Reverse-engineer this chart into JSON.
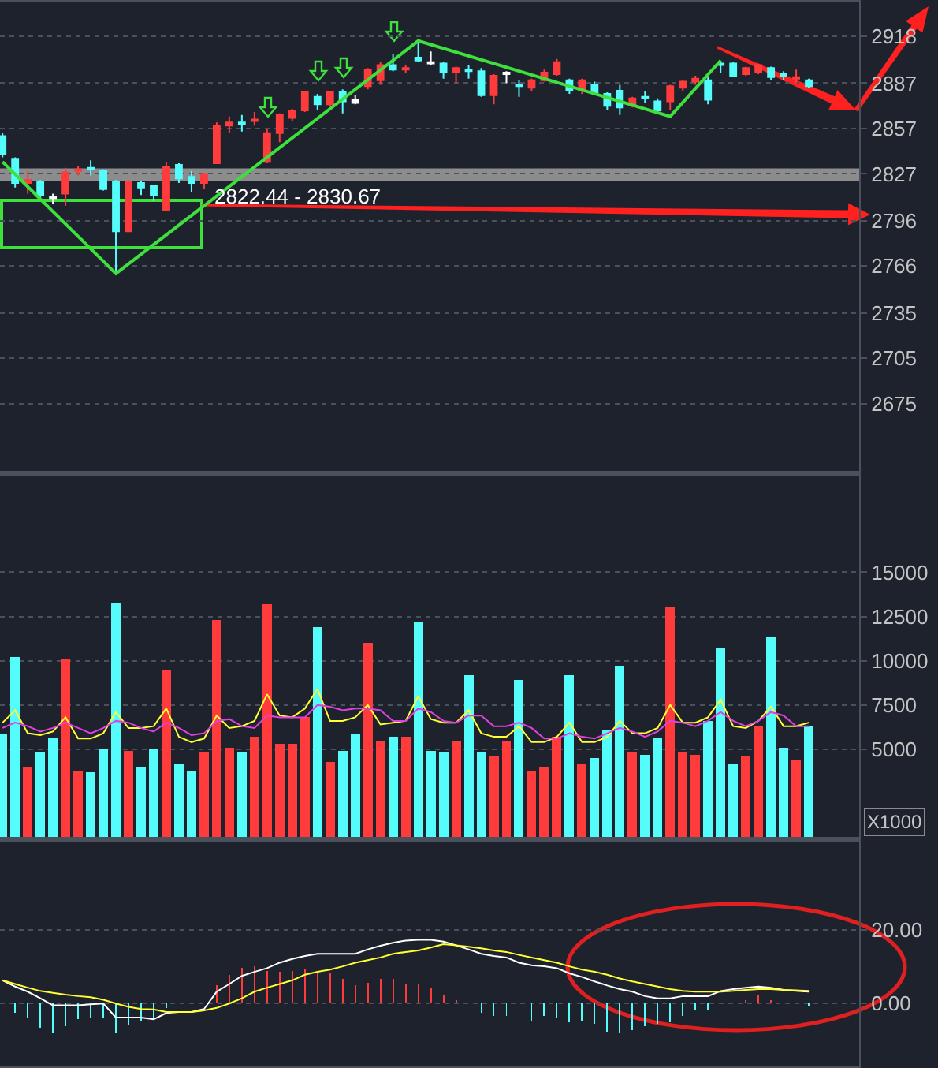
{
  "chart_data": [
    {
      "type": "candlestick",
      "categories": [
        null,
        null,
        null,
        null,
        null,
        null,
        null,
        null,
        null,
        null,
        null,
        null,
        null,
        null,
        null,
        null,
        null,
        null,
        null,
        null,
        null,
        null,
        null,
        null,
        null,
        null,
        null,
        null,
        null,
        null,
        null,
        null,
        null,
        null,
        null,
        null,
        null,
        null,
        null,
        null,
        null,
        null,
        null,
        null,
        null,
        null,
        null,
        null,
        null,
        null,
        null,
        null,
        null,
        null,
        null,
        null,
        null,
        null,
        null,
        null,
        null,
        null,
        null,
        null,
        null
      ],
      "ohlc": [
        [
          2852,
          2854,
          2838,
          2840
        ],
        [
          2837,
          2838,
          2818,
          2821
        ],
        [
          2821,
          2829,
          2814,
          2823
        ],
        [
          2822,
          2823,
          2811,
          2813
        ],
        [
          2812,
          2814,
          2807,
          2811
        ],
        [
          2814,
          2831,
          2806,
          2828
        ],
        [
          2829,
          2832,
          2826,
          2830
        ],
        [
          2831,
          2836,
          2826,
          2830
        ],
        [
          2829,
          2830,
          2816,
          2817
        ],
        [
          2822,
          2823,
          2760,
          2789
        ],
        [
          2789,
          2823,
          2789,
          2822
        ],
        [
          2821,
          2822,
          2813,
          2818
        ],
        [
          2819,
          2820,
          2809,
          2813
        ],
        [
          2803,
          2835,
          2803,
          2832
        ],
        [
          2833,
          2834,
          2821,
          2824
        ],
        [
          2825,
          2829,
          2815,
          2821
        ],
        [
          2821,
          2827,
          2817,
          2827
        ],
        [
          2834,
          2861,
          2834,
          2859
        ],
        [
          2859,
          2865,
          2854,
          2861
        ],
        [
          2861,
          2866,
          2855,
          2860
        ],
        [
          2862,
          2868,
          2859,
          2863
        ],
        [
          2835,
          2857,
          2834,
          2854
        ],
        [
          2854,
          2867,
          2848,
          2866
        ],
        [
          2864,
          2870,
          2862,
          2869
        ],
        [
          2869,
          2882,
          2868,
          2881
        ],
        [
          2878,
          2880,
          2869,
          2873
        ],
        [
          2873,
          2882,
          2872,
          2881
        ],
        [
          2881,
          2883,
          2867,
          2875
        ],
        [
          2876,
          2879,
          2873,
          2874
        ],
        [
          2885,
          2897,
          2883,
          2896
        ],
        [
          2889,
          2901,
          2886,
          2899
        ],
        [
          2899,
          2906,
          2895,
          2896
        ],
        [
          2896,
          2899,
          2894,
          2897
        ],
        [
          2904,
          2915,
          2901,
          2902
        ],
        [
          2901,
          2908,
          2899,
          2900
        ],
        [
          2900,
          2901,
          2890,
          2894
        ],
        [
          2894,
          2898,
          2887,
          2897
        ],
        [
          2896,
          2899,
          2890,
          2895
        ],
        [
          2895,
          2897,
          2878,
          2879
        ],
        [
          2879,
          2893,
          2873,
          2892
        ],
        [
          2894,
          2895,
          2887,
          2893
        ],
        [
          2886,
          2889,
          2878,
          2885
        ],
        [
          2884,
          2890,
          2882,
          2889
        ],
        [
          2889,
          2896,
          2888,
          2894
        ],
        [
          2893,
          2903,
          2892,
          2901
        ],
        [
          2889,
          2890,
          2880,
          2882
        ],
        [
          2882,
          2890,
          2880,
          2889
        ],
        [
          2886,
          2888,
          2879,
          2881
        ],
        [
          2880,
          2881,
          2869,
          2872
        ],
        [
          2882,
          2886,
          2866,
          2871
        ],
        [
          2873,
          2878,
          2871,
          2877
        ],
        [
          2878,
          2882,
          2874,
          2877
        ],
        [
          2875,
          2877,
          2869,
          2869
        ],
        [
          2875,
          2886,
          2869,
          2885
        ],
        [
          2884,
          2889,
          2882,
          2888
        ],
        [
          2888,
          2892,
          2886,
          2890
        ],
        [
          2889,
          2892,
          2873,
          2876
        ],
        [
          2900,
          2902,
          2894,
          2899
        ],
        [
          2900,
          2901,
          2891,
          2892
        ],
        [
          2893,
          2898,
          2892,
          2897
        ],
        [
          2894,
          2900,
          2893,
          2899
        ],
        [
          2897,
          2898,
          2889,
          2891
        ],
        [
          2893,
          2895,
          2889,
          2892
        ],
        [
          2890,
          2896,
          2887,
          2891
        ],
        [
          2889,
          2890,
          2884,
          2885
        ]
      ],
      "colors": [
        "#54fcfc",
        "#54fcfc",
        "#ff3b3b",
        "#54fcfc",
        "#ffffff",
        "#ff3b3b",
        "#ff3b3b",
        "#54fcfc",
        "#54fcfc",
        "#54fcfc",
        "#ff3b3b",
        "#54fcfc",
        "#54fcfc",
        "#ff3b3b",
        "#54fcfc",
        "#54fcfc",
        "#ff3b3b",
        "#ff3b3b",
        "#ff3b3b",
        "#54fcfc",
        "#ff3b3b",
        "#ff3b3b",
        "#ff3b3b",
        "#ff3b3b",
        "#ff3b3b",
        "#54fcfc",
        "#ff3b3b",
        "#54fcfc",
        "#ffffff",
        "#ff3b3b",
        "#ff3b3b",
        "#54fcfc",
        "#ff3b3b",
        "#54fcfc",
        "#ffffff",
        "#54fcfc",
        "#ff3b3b",
        "#54fcfc",
        "#54fcfc",
        "#ff3b3b",
        "#ffffff",
        "#54fcfc",
        "#ff3b3b",
        "#ff3b3b",
        "#ff3b3b",
        "#54fcfc",
        "#ff3b3b",
        "#54fcfc",
        "#54fcfc",
        "#54fcfc",
        "#ff3b3b",
        "#54fcfc",
        "#54fcfc",
        "#ff3b3b",
        "#ff3b3b",
        "#ff3b3b",
        "#54fcfc",
        "#54fcfc",
        "#54fcfc",
        "#ff3b3b",
        "#ff3b3b",
        "#54fcfc",
        "#54fcfc",
        "#ff3b3b",
        "#54fcfc"
      ],
      "series": [
        {
          "type": "line",
          "color": "#3ee03e",
          "values": [
            2835,
            null,
            null,
            null,
            null,
            null,
            null,
            null,
            null,
            2761,
            null,
            null,
            null,
            null,
            null,
            null,
            null,
            null,
            null,
            null,
            null,
            null,
            null,
            null,
            null,
            null,
            null,
            null,
            null,
            null,
            null,
            null,
            null,
            2915,
            null,
            null,
            null,
            null,
            null,
            null,
            null,
            null,
            null,
            null,
            null,
            null,
            null,
            null,
            null,
            null,
            null,
            null,
            null,
            2865,
            null,
            null,
            null,
            2902,
            null,
            null,
            null,
            null,
            null,
            null,
            null
          ]
        }
      ],
      "ylim": [
        2630,
        2941
      ],
      "yticks": [
        2675,
        2705,
        2735,
        2766,
        2796,
        2827,
        2857,
        2887,
        2918
      ],
      "bands": [
        {
          "axis": "y",
          "from": 2822.44,
          "to": 2830.67,
          "label": "2822.44 - 2830.67",
          "color": "#8c8c8c"
        }
      ],
      "grid": "y",
      "tick_labels": "y"
    },
    {
      "type": "bar",
      "categories": [
        null,
        null,
        null,
        null,
        null,
        null,
        null,
        null,
        null,
        null,
        null,
        null,
        null,
        null,
        null,
        null,
        null,
        null,
        null,
        null,
        null,
        null,
        null,
        null,
        null,
        null,
        null,
        null,
        null,
        null,
        null,
        null,
        null,
        null,
        null,
        null,
        null,
        null,
        null,
        null,
        null,
        null,
        null,
        null,
        null,
        null,
        null,
        null,
        null,
        null,
        null,
        null,
        null,
        null,
        null,
        null,
        null,
        null,
        null,
        null,
        null,
        null,
        null,
        null,
        null
      ],
      "series": [
        {
          "type": "bar",
          "values": [
            5900,
            10200,
            4000,
            4800,
            5600,
            10100,
            3800,
            3700,
            5000,
            13300,
            4900,
            4000,
            5000,
            9500,
            4200,
            3800,
            4800,
            12300,
            5100,
            4800,
            5700,
            13200,
            5300,
            5300,
            6800,
            11900,
            4300,
            4900,
            5900,
            11000,
            5500,
            5700,
            5700,
            12200,
            4900,
            4800,
            5500,
            9200,
            4800,
            4600,
            5500,
            8900,
            3800,
            4000,
            5700,
            9200,
            4200,
            4500,
            6100,
            9700,
            4800,
            4700,
            5600,
            13000,
            4800,
            4700,
            6600,
            10700,
            4200,
            4600,
            6300,
            11300,
            5100,
            4400,
            6300
          ],
          "colors": [
            "#54fcfc",
            "#54fcfc",
            "#ff3b3b",
            "#54fcfc",
            "#54fcfc",
            "#ff3b3b",
            "#ff3b3b",
            "#54fcfc",
            "#54fcfc",
            "#54fcfc",
            "#ff3b3b",
            "#54fcfc",
            "#54fcfc",
            "#ff3b3b",
            "#54fcfc",
            "#54fcfc",
            "#ff3b3b",
            "#ff3b3b",
            "#ff3b3b",
            "#54fcfc",
            "#ff3b3b",
            "#ff3b3b",
            "#ff3b3b",
            "#ff3b3b",
            "#ff3b3b",
            "#54fcfc",
            "#ff3b3b",
            "#54fcfc",
            "#54fcfc",
            "#ff3b3b",
            "#ff3b3b",
            "#54fcfc",
            "#ff3b3b",
            "#54fcfc",
            "#54fcfc",
            "#54fcfc",
            "#ff3b3b",
            "#54fcfc",
            "#54fcfc",
            "#ff3b3b",
            "#ff3b3b",
            "#54fcfc",
            "#ff3b3b",
            "#ff3b3b",
            "#ff3b3b",
            "#54fcfc",
            "#ff3b3b",
            "#54fcfc",
            "#54fcfc",
            "#54fcfc",
            "#ff3b3b",
            "#54fcfc",
            "#54fcfc",
            "#ff3b3b",
            "#ff3b3b",
            "#ff3b3b",
            "#54fcfc",
            "#54fcfc",
            "#54fcfc",
            "#ff3b3b",
            "#ff3b3b",
            "#54fcfc",
            "#54fcfc",
            "#ff3b3b",
            "#54fcfc"
          ]
        },
        {
          "type": "line",
          "color": "#ffff33",
          "values": [
            6500,
            7200,
            5900,
            5800,
            6000,
            6800,
            5600,
            5600,
            5900,
            7100,
            6200,
            6200,
            6300,
            7300,
            5700,
            5400,
            5600,
            6900,
            6200,
            6300,
            6600,
            8100,
            6900,
            6800,
            7300,
            8400,
            6600,
            6600,
            6800,
            7500,
            6400,
            6500,
            6600,
            8000,
            6700,
            6500,
            6500,
            7200,
            5900,
            5700,
            5700,
            6300,
            5400,
            5400,
            5700,
            6500,
            5400,
            5400,
            5700,
            6600,
            5900,
            5900,
            6200,
            7500,
            6500,
            6500,
            6800,
            7800,
            6300,
            6200,
            6600,
            7400,
            6300,
            6300,
            6500
          ]
        },
        {
          "type": "line",
          "color": "#e040e0",
          "values": [
            6200,
            6500,
            6300,
            6000,
            6200,
            6500,
            6200,
            5900,
            6200,
            6600,
            6500,
            6200,
            6000,
            6500,
            6200,
            5800,
            5900,
            6600,
            6700,
            6300,
            6200,
            6900,
            6800,
            6800,
            6800,
            7500,
            7400,
            7200,
            7300,
            7300,
            7200,
            6600,
            6600,
            7300,
            7100,
            6600,
            6500,
            6900,
            6900,
            6300,
            6300,
            6500,
            6200,
            5600,
            5600,
            5900,
            5700,
            5600,
            5900,
            6200,
            6000,
            5700,
            6000,
            6600,
            6500,
            6300,
            6600,
            7100,
            6600,
            6300,
            6600,
            7100,
            6900,
            6300,
            6300
          ]
        }
      ],
      "ylim": [
        0,
        20500
      ],
      "yticks": [
        5000,
        7500,
        10000,
        12500,
        15000
      ],
      "annotations": [
        "X1000"
      ],
      "grid": "y",
      "tick_labels": "y"
    },
    {
      "type": "bar",
      "categories": [
        null,
        null,
        null,
        null,
        null,
        null,
        null,
        null,
        null,
        null,
        null,
        null,
        null,
        null,
        null,
        null,
        null,
        null,
        null,
        null,
        null,
        null,
        null,
        null,
        null,
        null,
        null,
        null,
        null,
        null,
        null,
        null,
        null,
        null,
        null,
        null,
        null,
        null,
        null,
        null,
        null,
        null,
        null,
        null,
        null,
        null,
        null,
        null,
        null,
        null,
        null,
        null,
        null,
        null,
        null,
        null,
        null,
        null,
        null,
        null,
        null,
        null,
        null,
        null,
        null
      ],
      "series": [
        {
          "type": "bar",
          "values": [
            null,
            -2.6,
            -3.8,
            -6.6,
            -8.1,
            -6.2,
            -4.3,
            -3.8,
            -4.0,
            -8.1,
            -5.8,
            -4.8,
            -4.3,
            -1.2,
            null,
            null,
            null,
            4.9,
            7.8,
            9.6,
            10.1,
            8.9,
            8.6,
            8.9,
            9.2,
            8.6,
            8.2,
            6.8,
            4.9,
            5.7,
            6.8,
            6.8,
            5.3,
            5.3,
            4.3,
            2.4,
            1.0,
            null,
            -2.6,
            -3.3,
            -3.3,
            -4.3,
            -4.8,
            -3.3,
            -4.0,
            -5.2,
            -4.8,
            -5.5,
            -7.7,
            -8.1,
            -7.2,
            -6.2,
            -5.5,
            -5.2,
            -3.3,
            -1.9,
            -1.9,
            null,
            null,
            1.0,
            2.4,
            1.0,
            null,
            null,
            -0.9
          ],
          "colors": [
            "#54fcfc",
            "#54fcfc",
            "#54fcfc",
            "#54fcfc",
            "#54fcfc",
            "#54fcfc",
            "#54fcfc",
            "#54fcfc",
            "#54fcfc",
            "#54fcfc",
            "#54fcfc",
            "#54fcfc",
            "#54fcfc",
            "#54fcfc",
            "#54fcfc",
            "#54fcfc",
            "#54fcfc",
            "#ff3b3b",
            "#ff3b3b",
            "#ff3b3b",
            "#ff3b3b",
            "#ff3b3b",
            "#ff3b3b",
            "#ff3b3b",
            "#ff3b3b",
            "#ff3b3b",
            "#ff3b3b",
            "#ff3b3b",
            "#ff3b3b",
            "#ff3b3b",
            "#ff3b3b",
            "#ff3b3b",
            "#ff3b3b",
            "#ff3b3b",
            "#ff3b3b",
            "#ff3b3b",
            "#ff3b3b",
            "#54fcfc",
            "#54fcfc",
            "#54fcfc",
            "#54fcfc",
            "#54fcfc",
            "#54fcfc",
            "#54fcfc",
            "#54fcfc",
            "#54fcfc",
            "#54fcfc",
            "#54fcfc",
            "#54fcfc",
            "#54fcfc",
            "#54fcfc",
            "#54fcfc",
            "#54fcfc",
            "#54fcfc",
            "#54fcfc",
            "#54fcfc",
            "#54fcfc",
            "#ff3b3b",
            "#ff3b3b",
            "#ff3b3b",
            "#ff3b3b",
            "#ff3b3b",
            "#ff3b3b",
            "#ff3b3b",
            "#54fcfc"
          ]
        },
        {
          "type": "line",
          "color": "#ffffff",
          "values": [
            6.3,
            4.6,
            3.2,
            1.4,
            -0.5,
            -0.5,
            -0.5,
            -0.2,
            0.0,
            -3.8,
            -3.8,
            -3.8,
            -4.3,
            -2.6,
            -2.3,
            -2.3,
            -1.5,
            3.2,
            5.3,
            7.5,
            8.6,
            9.6,
            11.1,
            12.1,
            12.9,
            13.5,
            13.5,
            13.5,
            13.5,
            14.7,
            15.7,
            16.5,
            17.1,
            17.3,
            17.3,
            16.8,
            15.8,
            14.7,
            13.5,
            12.9,
            12.5,
            11.1,
            10.4,
            10.1,
            9.6,
            8.2,
            7.2,
            6.0,
            4.9,
            3.9,
            3.2,
            2.0,
            1.4,
            1.4,
            2.0,
            2.0,
            2.0,
            3.4,
            3.9,
            4.3,
            4.6,
            4.3,
            3.7,
            3.4,
            3.2
          ]
        },
        {
          "type": "line",
          "color": "#ffff33",
          "values": [
            6.3,
            5.3,
            4.3,
            3.4,
            2.9,
            2.4,
            2.0,
            1.7,
            1.0,
            0.0,
            -0.9,
            -1.5,
            -1.6,
            -2.3,
            -2.3,
            -2.3,
            -1.9,
            -1.2,
            0.0,
            1.4,
            3.2,
            4.3,
            5.3,
            6.3,
            7.8,
            8.6,
            9.2,
            10.1,
            11.1,
            11.8,
            12.5,
            13.5,
            14.0,
            14.4,
            15.2,
            16.1,
            15.8,
            15.4,
            15.0,
            14.4,
            14.0,
            13.2,
            12.5,
            11.8,
            11.1,
            10.1,
            9.2,
            8.6,
            7.8,
            6.8,
            6.0,
            5.3,
            4.6,
            3.9,
            3.4,
            3.2,
            3.2,
            3.2,
            3.4,
            3.7,
            3.9,
            3.9,
            3.7,
            3.6,
            3.4
          ]
        }
      ],
      "ylim": [
        -17.1,
        44.2
      ],
      "yticks": [
        {
          "value": 0,
          "label": "0.00"
        },
        {
          "value": 20,
          "label": "20.00"
        }
      ],
      "grid": "y",
      "tick_labels": "y"
    }
  ]
}
